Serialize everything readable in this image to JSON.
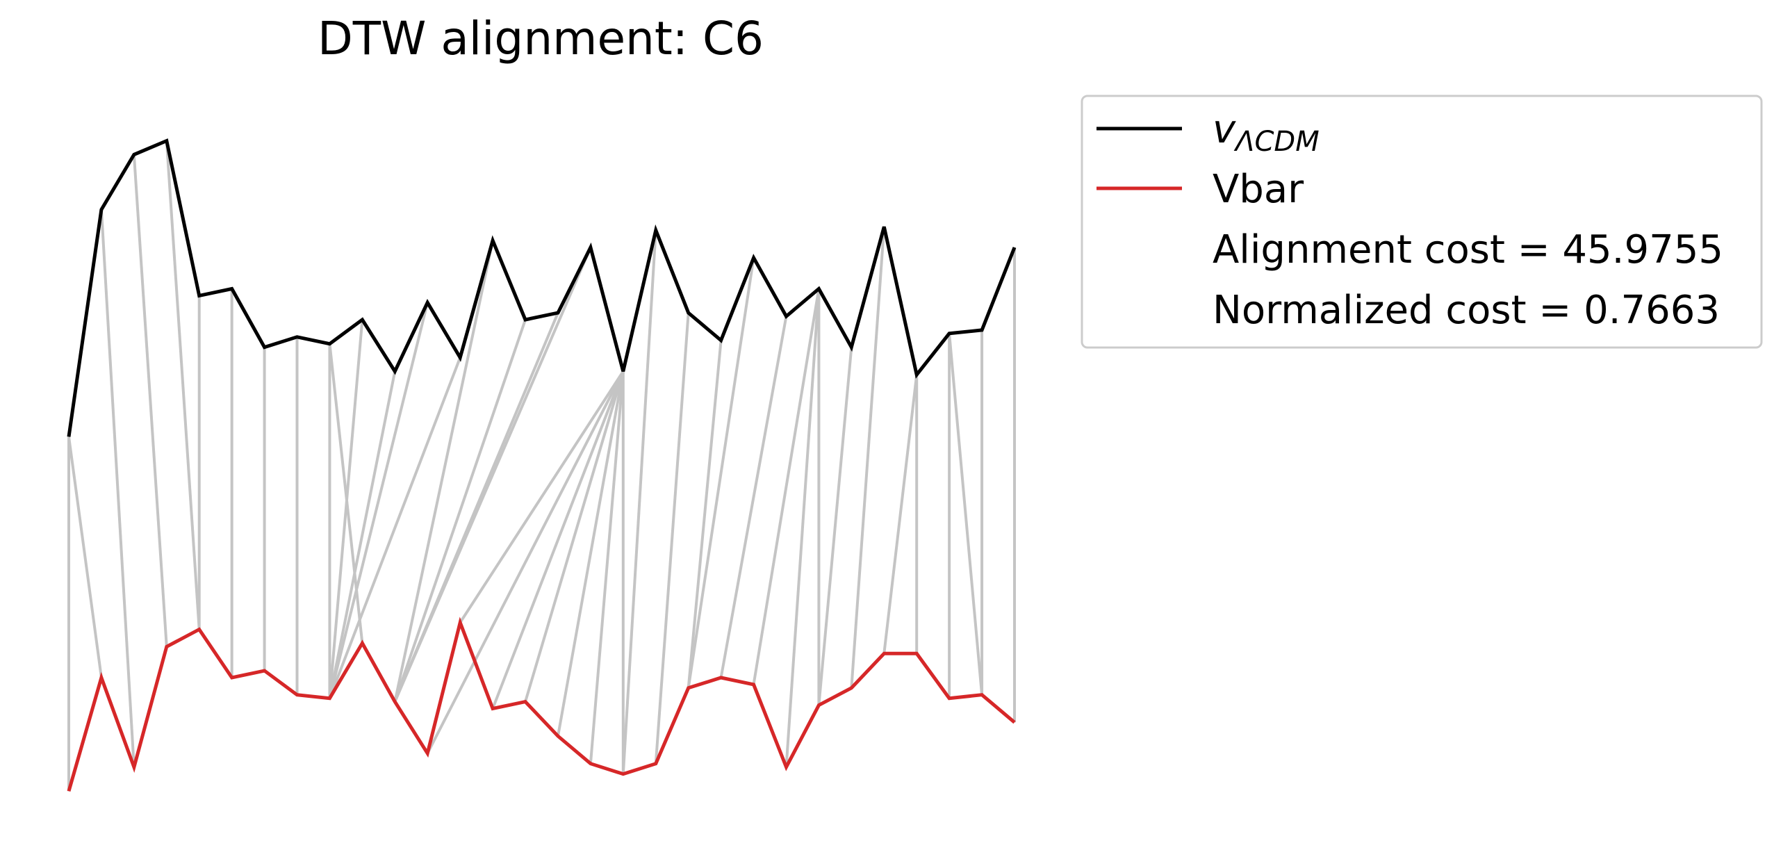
{
  "chart_data": {
    "type": "line",
    "title": "DTW alignment: C6",
    "grid": false,
    "axes_visible": false,
    "legend_position": "outside-right",
    "colors": {
      "v_lcdm": "#000000",
      "vbar": "#d62728",
      "alignment_link": "#c4c4c4"
    },
    "series": [
      {
        "name": "v_ΛCDM",
        "label_main": "v",
        "label_sub": "ΛCDM",
        "color": "#000000",
        "values": [
          0.0,
          0.66,
          0.82,
          0.86,
          0.41,
          0.43,
          0.26,
          0.29,
          0.27,
          0.34,
          0.19,
          0.39,
          0.23,
          0.57,
          0.34,
          0.36,
          0.55,
          0.19,
          0.6,
          0.36,
          0.28,
          0.52,
          0.35,
          0.43,
          0.26,
          0.61,
          0.18,
          0.3,
          0.31,
          0.55
        ]
      },
      {
        "name": "Vbar",
        "label_main": "Vbar",
        "color": "#d62728",
        "values": [
          -1.03,
          -0.7,
          -0.96,
          -0.61,
          -0.56,
          -0.7,
          -0.68,
          -0.75,
          -0.76,
          -0.6,
          -0.77,
          -0.92,
          -0.54,
          -0.79,
          -0.77,
          -0.87,
          -0.95,
          -0.98,
          -0.95,
          -0.73,
          -0.7,
          -0.72,
          -0.96,
          -0.78,
          -0.73,
          -0.63,
          -0.63,
          -0.76,
          -0.75,
          -0.83
        ]
      }
    ],
    "alignment_path": [
      [
        0,
        0
      ],
      [
        0,
        1
      ],
      [
        1,
        2
      ],
      [
        2,
        3
      ],
      [
        3,
        4
      ],
      [
        4,
        4
      ],
      [
        5,
        5
      ],
      [
        6,
        6
      ],
      [
        7,
        7
      ],
      [
        8,
        8
      ],
      [
        8,
        9
      ],
      [
        9,
        8
      ],
      [
        10,
        8
      ],
      [
        11,
        8
      ],
      [
        12,
        8
      ],
      [
        13,
        10
      ],
      [
        14,
        10
      ],
      [
        15,
        10
      ],
      [
        16,
        10
      ],
      [
        17,
        11
      ],
      [
        17,
        12
      ],
      [
        17,
        13
      ],
      [
        17,
        14
      ],
      [
        17,
        15
      ],
      [
        17,
        16
      ],
      [
        17,
        17
      ],
      [
        18,
        17
      ],
      [
        19,
        18
      ],
      [
        20,
        19
      ],
      [
        21,
        19
      ],
      [
        22,
        20
      ],
      [
        23,
        21
      ],
      [
        23,
        22
      ],
      [
        23,
        23
      ],
      [
        24,
        23
      ],
      [
        25,
        24
      ],
      [
        26,
        25
      ],
      [
        26,
        26
      ],
      [
        27,
        27
      ],
      [
        27,
        28
      ],
      [
        28,
        28
      ],
      [
        29,
        29
      ]
    ],
    "annotations": {
      "alignment_cost_label": "Alignment cost = 45.9755",
      "normalized_cost_label": "Normalized cost = 0.7663"
    },
    "ylim": [
      -1.1,
      0.95
    ]
  }
}
